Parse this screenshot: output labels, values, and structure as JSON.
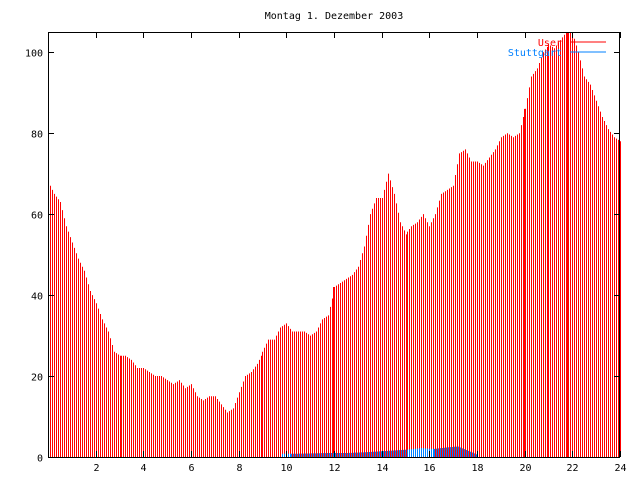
{
  "chart_data": {
    "type": "bar",
    "title": "Montag 1. Dezember 2003",
    "xlabel": "",
    "ylabel": "",
    "xlim": [
      0,
      24
    ],
    "ylim": [
      0,
      105
    ],
    "xticks": [
      2,
      4,
      6,
      8,
      10,
      12,
      14,
      16,
      18,
      20,
      22,
      24
    ],
    "yticks": [
      0,
      20,
      40,
      60,
      80,
      100
    ],
    "grid": false,
    "legend_position": "top-right",
    "series": [
      {
        "name": "User",
        "color": "#ff0000",
        "style": "impulses",
        "anchors": [
          [
            0,
            68
          ],
          [
            0.25,
            65
          ],
          [
            0.5,
            63
          ],
          [
            0.75,
            57
          ],
          [
            1,
            53
          ],
          [
            1.25,
            49
          ],
          [
            1.5,
            46
          ],
          [
            1.75,
            41
          ],
          [
            2,
            38
          ],
          [
            2.25,
            34
          ],
          [
            2.5,
            31
          ],
          [
            2.75,
            26
          ],
          [
            3,
            25
          ],
          [
            3.25,
            25
          ],
          [
            3.5,
            24
          ],
          [
            3.75,
            22
          ],
          [
            4,
            22
          ],
          [
            4.25,
            21
          ],
          [
            4.5,
            20
          ],
          [
            4.75,
            20
          ],
          [
            5,
            19
          ],
          [
            5.25,
            18
          ],
          [
            5.5,
            19
          ],
          [
            5.75,
            17
          ],
          [
            6,
            18
          ],
          [
            6.25,
            15
          ],
          [
            6.5,
            14
          ],
          [
            6.75,
            15
          ],
          [
            7,
            15
          ],
          [
            7.25,
            13
          ],
          [
            7.5,
            11
          ],
          [
            7.75,
            12
          ],
          [
            8,
            16
          ],
          [
            8.25,
            20
          ],
          [
            8.5,
            21
          ],
          [
            8.75,
            23
          ],
          [
            9,
            26
          ],
          [
            9.25,
            29
          ],
          [
            9.5,
            29
          ],
          [
            9.75,
            32
          ],
          [
            10,
            33
          ],
          [
            10.25,
            31
          ],
          [
            10.5,
            31
          ],
          [
            10.75,
            31
          ],
          [
            11,
            30
          ],
          [
            11.25,
            31
          ],
          [
            11.5,
            34
          ],
          [
            11.75,
            35
          ],
          [
            11.95,
            40
          ],
          [
            12,
            42
          ],
          [
            12.25,
            43
          ],
          [
            12.5,
            44
          ],
          [
            12.75,
            45
          ],
          [
            13,
            47
          ],
          [
            13.25,
            52
          ],
          [
            13.5,
            60
          ],
          [
            13.75,
            64
          ],
          [
            14,
            64
          ],
          [
            14.25,
            70
          ],
          [
            14.5,
            65
          ],
          [
            14.75,
            58
          ],
          [
            15,
            55
          ],
          [
            15.25,
            57
          ],
          [
            15.5,
            58
          ],
          [
            15.75,
            60
          ],
          [
            16,
            57
          ],
          [
            16.25,
            60
          ],
          [
            16.5,
            65
          ],
          [
            16.75,
            66
          ],
          [
            17,
            67
          ],
          [
            17.25,
            75
          ],
          [
            17.5,
            76
          ],
          [
            17.75,
            73
          ],
          [
            18,
            73
          ],
          [
            18.25,
            72
          ],
          [
            18.5,
            74
          ],
          [
            18.75,
            76
          ],
          [
            19,
            79
          ],
          [
            19.25,
            80
          ],
          [
            19.5,
            79
          ],
          [
            19.75,
            80
          ],
          [
            20,
            86
          ],
          [
            20.25,
            94
          ],
          [
            20.5,
            96
          ],
          [
            20.75,
            100
          ],
          [
            21,
            102
          ],
          [
            21.25,
            101
          ],
          [
            21.5,
            103
          ],
          [
            21.75,
            105
          ],
          [
            22,
            105
          ],
          [
            22.25,
            100
          ],
          [
            22.5,
            94
          ],
          [
            22.75,
            92
          ],
          [
            23,
            88
          ],
          [
            23.25,
            84
          ],
          [
            23.5,
            81
          ],
          [
            23.75,
            79
          ],
          [
            24,
            78
          ]
        ]
      },
      {
        "name": "Stuttgart",
        "color": "#0080ff",
        "style": "impulses",
        "anchors": [
          [
            9.8,
            0.8
          ],
          [
            10.4,
            0.8
          ],
          [
            11.2,
            0.9
          ],
          [
            11.8,
            1
          ],
          [
            12.6,
            1
          ],
          [
            13.4,
            1.2
          ],
          [
            14.2,
            1.5
          ],
          [
            15,
            1.8
          ],
          [
            15.6,
            2.2
          ],
          [
            16.2,
            2
          ],
          [
            16.8,
            2.4
          ],
          [
            17.2,
            2.6
          ],
          [
            17.6,
            1.6
          ],
          [
            18,
            0.6
          ]
        ]
      }
    ]
  }
}
